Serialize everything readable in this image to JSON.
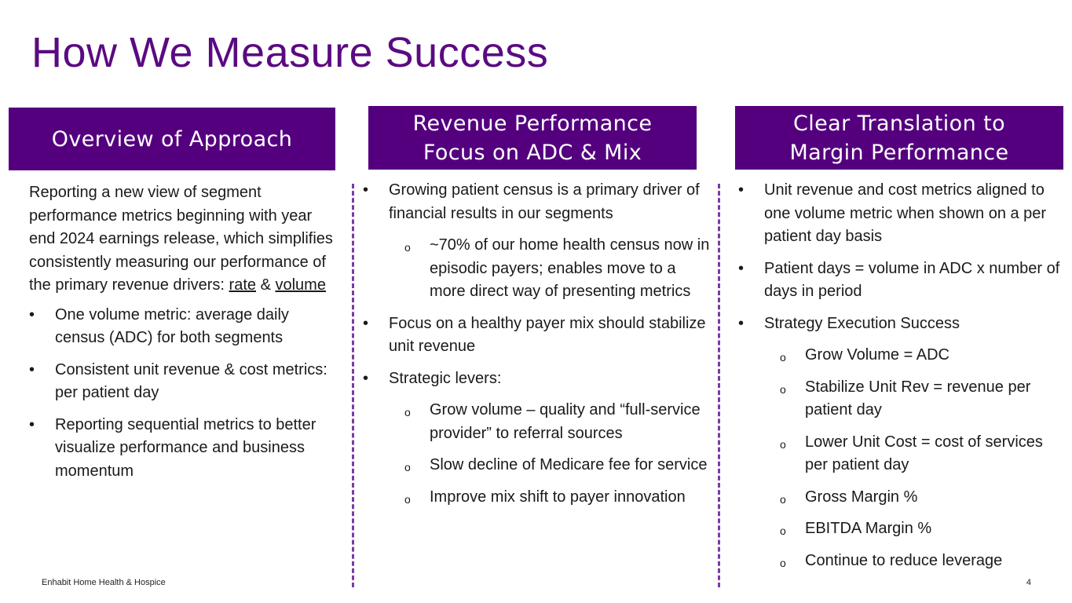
{
  "title": "How We Measure Success",
  "columns": [
    {
      "header": [
        "Overview of Approach"
      ],
      "intro": "Reporting a new view of segment performance metrics beginning with year end 2024 earnings release, which simplifies consistently measuring our performance of the primary revenue drivers: ",
      "intro_rate": "rate",
      "intro_amp": " & ",
      "intro_volume": "volume",
      "bullets": [
        "One volume metric: average daily census (ADC) for both segments",
        "Consistent unit revenue & cost metrics: per patient day",
        "Reporting sequential metrics to better visualize performance and business momentum"
      ]
    },
    {
      "header": [
        "Revenue Performance",
        "Focus on ADC & Mix"
      ],
      "b1": "Growing patient census is a primary driver of financial results in our segments",
      "b1_sub": "~70% of our home health census now in episodic payers; enables move to a more direct way of presenting metrics",
      "b2": "Focus on a healthy payer mix should stabilize unit revenue",
      "b3": "Strategic levers:",
      "b3_subs": [
        "Grow volume – quality and “full-service provider” to referral sources",
        "Slow decline of Medicare fee for service",
        "Improve mix shift to payer innovation"
      ]
    },
    {
      "header": [
        "Clear Translation to",
        "Margin Performance"
      ],
      "b1": "Unit revenue and cost metrics aligned to one volume metric when shown on a per patient day basis",
      "b2": "Patient days = volume in ADC x number of days in period",
      "b3": "Strategy Execution Success",
      "b3_subs": [
        "Grow Volume = ADC",
        "Stabilize Unit Rev = revenue per patient day",
        "Lower Unit Cost = cost of services per patient day",
        "Gross Margin %",
        "EBITDA Margin %",
        "Continue to reduce leverage"
      ]
    }
  ],
  "footer": {
    "company": "Enhabit Home Health & Hospice",
    "page": "4"
  },
  "colors": {
    "title": "#5b0a82",
    "header_bg": "#54007e",
    "divider": "#7a3aa8"
  }
}
